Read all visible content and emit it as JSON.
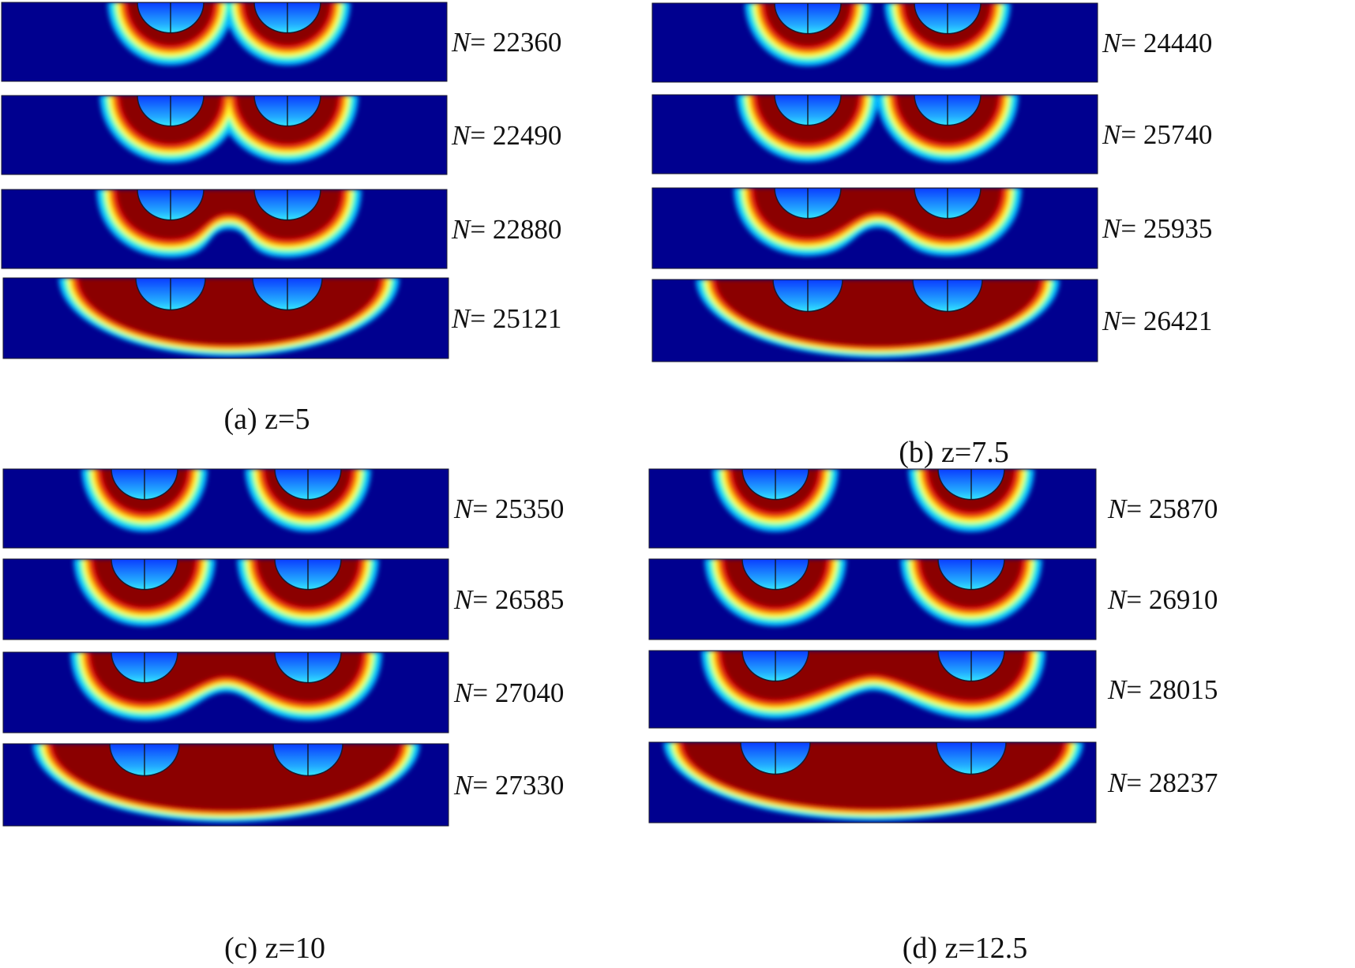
{
  "panels": [
    {
      "caption": "(a) z=5",
      "frames": [
        {
          "n_symbol": "N",
          "n_value": "= 22360",
          "stage": "separate"
        },
        {
          "n_symbol": "N",
          "n_value": "= 22490",
          "stage": "touching"
        },
        {
          "n_symbol": "N",
          "n_value": "= 22880",
          "stage": "bridged"
        },
        {
          "n_symbol": "N",
          "n_value": "= 25121",
          "stage": "merged"
        }
      ]
    },
    {
      "caption": "(b) z=7.5",
      "frames": [
        {
          "n_symbol": "N",
          "n_value": "= 24440",
          "stage": "separate"
        },
        {
          "n_symbol": "N",
          "n_value": "= 25740",
          "stage": "touching"
        },
        {
          "n_symbol": "N",
          "n_value": "= 25935",
          "stage": "bridged"
        },
        {
          "n_symbol": "N",
          "n_value": "= 26421",
          "stage": "merged"
        }
      ]
    },
    {
      "caption": "(c) z=10",
      "frames": [
        {
          "n_symbol": "N",
          "n_value": "= 25350",
          "stage": "separate"
        },
        {
          "n_symbol": "N",
          "n_value": "= 26585",
          "stage": "touching"
        },
        {
          "n_symbol": "N",
          "n_value": "= 27040",
          "stage": "bridged"
        },
        {
          "n_symbol": "N",
          "n_value": "= 27330",
          "stage": "merged"
        }
      ]
    },
    {
      "caption": "(d) z=12.5",
      "frames": [
        {
          "n_symbol": "N",
          "n_value": "= 25870",
          "stage": "separate"
        },
        {
          "n_symbol": "N",
          "n_value": "= 26910",
          "stage": "touching"
        },
        {
          "n_symbol": "N",
          "n_value": "= 28015",
          "stage": "bridged"
        },
        {
          "n_symbol": "N",
          "n_value": "= 28237",
          "stage": "merged"
        }
      ]
    }
  ],
  "colors": {
    "background": "#00008f",
    "hot_core": "#8b0000",
    "hot": "#e01010",
    "warm": "#ff8c00",
    "mid": "#ffff33",
    "cool": "#33ffcc",
    "cold": "#00b0ff",
    "notch_inner": "#1e78ff",
    "notch_rim": "#1a1a2e"
  }
}
